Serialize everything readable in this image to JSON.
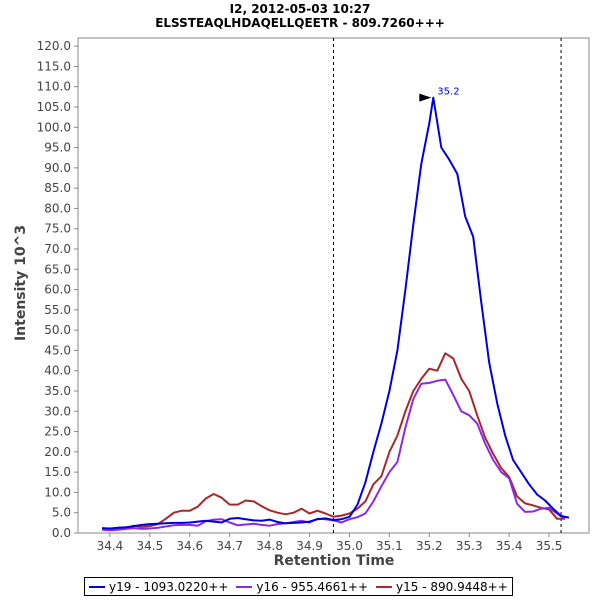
{
  "chart_data": {
    "type": "line",
    "title": "I2, 2012-05-03 10:27",
    "subtitle": "ELSSTEAQLHDAQELLQEETR - 809.7260+++",
    "xlabel": "Retention Time",
    "ylabel": "Intensity 10^3",
    "xlim": [
      34.32,
      35.6
    ],
    "ylim": [
      0,
      122
    ],
    "x_ticks": [
      "34.4",
      "34.5",
      "34.6",
      "34.7",
      "34.8",
      "34.9",
      "35.0",
      "35.1",
      "35.2",
      "35.3",
      "35.4",
      "35.5"
    ],
    "y_ticks": [
      "0.0",
      "5.0",
      "10.0",
      "15.0",
      "20.0",
      "25.0",
      "30.0",
      "35.0",
      "40.0",
      "45.0",
      "50.0",
      "55.0",
      "60.0",
      "65.0",
      "70.0",
      "75.0",
      "80.0",
      "85.0",
      "90.0",
      "95.0",
      "100.0",
      "105.0",
      "110.0",
      "115.0",
      "120.0"
    ],
    "grid": false,
    "legend_position": "bottom",
    "boundaries": [
      34.96,
      35.53
    ],
    "peak_label": {
      "text": "35.2",
      "x": 35.21,
      "y": 107.3
    },
    "series": [
      {
        "name": "y19 - 1093.0220++",
        "color": "#0000dd",
        "x": [
          34.38,
          34.4,
          34.42,
          34.44,
          34.46,
          34.48,
          34.5,
          34.52,
          34.54,
          34.56,
          34.58,
          34.6,
          34.62,
          34.64,
          34.66,
          34.68,
          34.7,
          34.72,
          34.74,
          34.76,
          34.78,
          34.8,
          34.82,
          34.84,
          34.86,
          34.88,
          34.9,
          34.92,
          34.94,
          34.96,
          34.98,
          35.0,
          35.02,
          35.04,
          35.06,
          35.08,
          35.1,
          35.12,
          35.14,
          35.16,
          35.18,
          35.2,
          35.21,
          35.23,
          35.25,
          35.27,
          35.29,
          35.31,
          35.33,
          35.35,
          35.37,
          35.39,
          35.41,
          35.43,
          35.45,
          35.47,
          35.49,
          35.51,
          35.53,
          35.55
        ],
        "values": [
          1.2,
          1.1,
          1.3,
          1.4,
          1.7,
          2.0,
          2.2,
          2.3,
          2.4,
          2.5,
          2.5,
          2.6,
          2.8,
          3.0,
          2.8,
          2.6,
          3.5,
          3.7,
          3.4,
          3.1,
          3.0,
          3.3,
          2.7,
          2.4,
          2.5,
          2.6,
          2.8,
          3.4,
          3.6,
          3.2,
          3.4,
          4.0,
          7.0,
          12.5,
          20.0,
          27.0,
          35.0,
          45.0,
          60.0,
          76.0,
          91.0,
          101.0,
          107.3,
          95.0,
          92.0,
          88.5,
          78.0,
          73.0,
          57.0,
          42.0,
          32.0,
          24.0,
          18.0,
          15.0,
          12.0,
          9.5,
          8.0,
          6.0,
          4.2,
          3.8
        ]
      },
      {
        "name": "y16 - 955.4661++",
        "color": "#8a2be2",
        "x": [
          34.38,
          34.4,
          34.42,
          34.44,
          34.46,
          34.48,
          34.5,
          34.52,
          34.54,
          34.56,
          34.58,
          34.6,
          34.62,
          34.64,
          34.66,
          34.68,
          34.7,
          34.72,
          34.74,
          34.76,
          34.78,
          34.8,
          34.82,
          34.84,
          34.86,
          34.88,
          34.9,
          34.92,
          34.94,
          34.96,
          34.98,
          35.0,
          35.02,
          35.04,
          35.06,
          35.08,
          35.1,
          35.12,
          35.14,
          35.16,
          35.18,
          35.2,
          35.22,
          35.24,
          35.26,
          35.28,
          35.3,
          35.32,
          35.34,
          35.36,
          35.38,
          35.4,
          35.42,
          35.44,
          35.46,
          35.48,
          35.5,
          35.52,
          35.54
        ],
        "values": [
          0.8,
          0.7,
          0.8,
          1.0,
          1.2,
          1.0,
          1.1,
          1.3,
          1.6,
          1.9,
          2.0,
          2.0,
          1.8,
          2.9,
          3.3,
          3.4,
          2.6,
          1.9,
          2.1,
          2.3,
          2.0,
          1.8,
          2.2,
          2.4,
          2.7,
          3.0,
          2.6,
          3.5,
          3.4,
          3.1,
          2.6,
          3.4,
          3.9,
          4.8,
          7.8,
          11.5,
          15.0,
          17.5,
          26.0,
          33.0,
          36.8,
          37.0,
          37.5,
          37.8,
          34.0,
          30.0,
          29.0,
          27.0,
          22.0,
          18.0,
          15.0,
          13.5,
          7.2,
          5.2,
          5.3,
          6.0,
          6.2,
          4.8,
          3.4
        ]
      },
      {
        "name": "y15 - 890.9448++",
        "color": "#a52a2a",
        "x": [
          34.38,
          34.4,
          34.42,
          34.44,
          34.46,
          34.48,
          34.5,
          34.52,
          34.54,
          34.56,
          34.58,
          34.6,
          34.62,
          34.64,
          34.66,
          34.68,
          34.7,
          34.72,
          34.74,
          34.76,
          34.78,
          34.8,
          34.82,
          34.84,
          34.86,
          34.88,
          34.9,
          34.92,
          34.94,
          34.96,
          34.98,
          35.0,
          35.02,
          35.04,
          35.06,
          35.08,
          35.1,
          35.12,
          35.14,
          35.16,
          35.18,
          35.2,
          35.22,
          35.24,
          35.26,
          35.28,
          35.3,
          35.32,
          35.34,
          35.36,
          35.38,
          35.4,
          35.42,
          35.44,
          35.46,
          35.48,
          35.5,
          35.52,
          35.54
        ],
        "values": [
          1.0,
          1.0,
          0.9,
          1.1,
          1.8,
          1.5,
          1.7,
          2.2,
          3.5,
          5.0,
          5.5,
          5.5,
          6.5,
          8.5,
          9.6,
          8.7,
          7.0,
          7.0,
          8.0,
          7.8,
          6.6,
          5.6,
          5.0,
          4.6,
          5.0,
          6.0,
          4.8,
          5.5,
          4.8,
          4.0,
          4.3,
          4.8,
          6.0,
          7.8,
          12.0,
          14.0,
          20.0,
          24.0,
          30.0,
          35.0,
          38.0,
          40.5,
          40.0,
          44.3,
          43.0,
          38.0,
          35.0,
          29.0,
          23.5,
          19.5,
          16.0,
          13.8,
          9.0,
          7.3,
          6.8,
          6.2,
          5.8,
          3.5,
          3.5
        ]
      }
    ]
  }
}
